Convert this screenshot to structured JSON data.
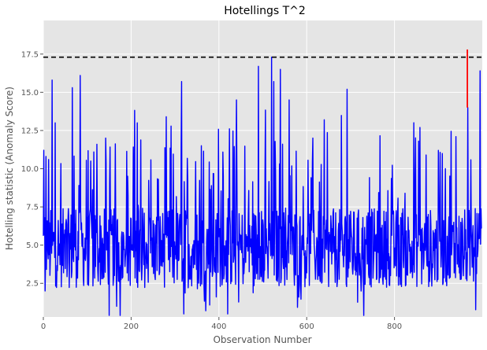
{
  "chart_data": {
    "type": "line",
    "title": "Hotellings T^2",
    "xlabel": "Observation Number",
    "ylabel": "Hotelling statistic (Anomaly Score)",
    "xlim": [
      0,
      1000
    ],
    "ylim": [
      0.3,
      19.7
    ],
    "xticks": [
      0,
      200,
      400,
      600,
      800
    ],
    "yticks": [
      2.5,
      5.0,
      7.5,
      10.0,
      12.5,
      15.0,
      17.5
    ],
    "grid": true,
    "threshold": 17.3,
    "series_count": 1000,
    "series": [
      {
        "color": "#0000ff",
        "peaks": [
          {
            "x": 4,
            "y": 2.0
          },
          {
            "x": 6,
            "y": 10.8
          },
          {
            "x": 20,
            "y": 15.8
          },
          {
            "x": 27,
            "y": 13.0
          },
          {
            "x": 66,
            "y": 15.3
          },
          {
            "x": 84,
            "y": 16.1
          },
          {
            "x": 108,
            "y": 10.5
          },
          {
            "x": 122,
            "y": 11.6
          },
          {
            "x": 142,
            "y": 12.0
          },
          {
            "x": 150,
            "y": 0.4
          },
          {
            "x": 175,
            "y": 0.4
          },
          {
            "x": 214,
            "y": 13.0
          },
          {
            "x": 280,
            "y": 13.4
          },
          {
            "x": 315,
            "y": 15.7
          },
          {
            "x": 320,
            "y": 0.5
          },
          {
            "x": 360,
            "y": 11.5
          },
          {
            "x": 410,
            "y": 9.5
          },
          {
            "x": 420,
            "y": 0.5
          },
          {
            "x": 440,
            "y": 14.5
          },
          {
            "x": 490,
            "y": 16.7
          },
          {
            "x": 520,
            "y": 17.3
          },
          {
            "x": 525,
            "y": 15.7
          },
          {
            "x": 540,
            "y": 16.5
          },
          {
            "x": 560,
            "y": 14.5
          },
          {
            "x": 640,
            "y": 13.2
          },
          {
            "x": 692,
            "y": 15.2
          },
          {
            "x": 730,
            "y": 0.4
          },
          {
            "x": 858,
            "y": 12.7
          },
          {
            "x": 900,
            "y": 11.2
          },
          {
            "x": 940,
            "y": 12.1
          },
          {
            "x": 967,
            "y": 14.0
          },
          {
            "x": 995,
            "y": 16.4
          }
        ]
      },
      {
        "color": "#ff0000",
        "segment": [
          {
            "x": 966,
            "y": 14.0
          },
          {
            "x": 966,
            "y": 17.8
          }
        ]
      }
    ]
  }
}
